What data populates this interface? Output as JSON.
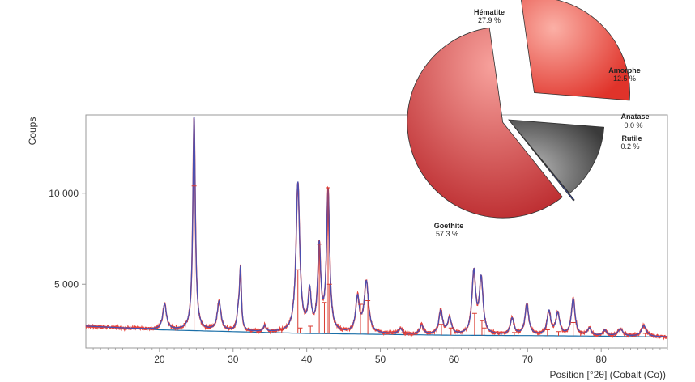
{
  "chart_data": [
    {
      "type": "line",
      "title": "",
      "ylabel": "Coups",
      "xlabel": "Position [°2θ] (Cobalt (Co))",
      "xlim": [
        10,
        89
      ],
      "ylim": [
        1500,
        14300
      ],
      "x_ticks": [
        20,
        30,
        40,
        50,
        60,
        70,
        80
      ],
      "x_tick_labels": [
        "20",
        "30",
        "40",
        "50",
        "60",
        "70",
        "80"
      ],
      "y_ticks": [
        5000,
        10000
      ],
      "y_tick_labels": [
        "5 000",
        "10 000"
      ],
      "grid": false,
      "background": {
        "x": [
          10,
          20,
          30,
          40,
          50,
          60,
          70,
          80,
          89
        ],
        "y": [
          2700,
          2500,
          2400,
          2300,
          2250,
          2200,
          2180,
          2150,
          2100
        ]
      },
      "peaks": [
        {
          "x": 20.7,
          "height": 1400,
          "width": 0.3
        },
        {
          "x": 24.7,
          "height": 11800,
          "width": 0.2
        },
        {
          "x": 28.1,
          "height": 1600,
          "width": 0.3
        },
        {
          "x": 30.7,
          "height": 900,
          "width": 0.2
        },
        {
          "x": 31.0,
          "height": 3300,
          "width": 0.15
        },
        {
          "x": 34.3,
          "height": 350,
          "width": 0.2
        },
        {
          "x": 38.8,
          "height": 8200,
          "width": 0.3
        },
        {
          "x": 40.4,
          "height": 2100,
          "width": 0.25
        },
        {
          "x": 41.7,
          "height": 4600,
          "width": 0.25
        },
        {
          "x": 42.9,
          "height": 7700,
          "width": 0.25
        },
        {
          "x": 46.9,
          "height": 1900,
          "width": 0.3
        },
        {
          "x": 48.1,
          "height": 2800,
          "width": 0.35
        },
        {
          "x": 52.7,
          "height": 300,
          "width": 0.3
        },
        {
          "x": 55.6,
          "height": 500,
          "width": 0.3
        },
        {
          "x": 58.2,
          "height": 1300,
          "width": 0.3
        },
        {
          "x": 59.4,
          "height": 900,
          "width": 0.3
        },
        {
          "x": 62.7,
          "height": 3400,
          "width": 0.3
        },
        {
          "x": 63.7,
          "height": 3000,
          "width": 0.3
        },
        {
          "x": 67.9,
          "height": 900,
          "width": 0.3
        },
        {
          "x": 69.9,
          "height": 1700,
          "width": 0.3
        },
        {
          "x": 72.9,
          "height": 1300,
          "width": 0.3
        },
        {
          "x": 74.1,
          "height": 1200,
          "width": 0.3
        },
        {
          "x": 76.2,
          "height": 2000,
          "width": 0.3
        },
        {
          "x": 78.4,
          "height": 400,
          "width": 0.3
        },
        {
          "x": 80.5,
          "height": 300,
          "width": 0.3
        },
        {
          "x": 82.6,
          "height": 400,
          "width": 0.4
        },
        {
          "x": 85.8,
          "height": 600,
          "width": 0.4
        }
      ],
      "reference_lines": [
        {
          "x": 24.7,
          "y": 10400
        },
        {
          "x": 38.8,
          "y": 5800
        },
        {
          "x": 39.1,
          "y": 2600
        },
        {
          "x": 41.7,
          "y": 7200
        },
        {
          "x": 42.9,
          "y": 10300
        },
        {
          "x": 43.1,
          "y": 5000
        },
        {
          "x": 42.4,
          "y": 4000
        },
        {
          "x": 40.5,
          "y": 2700
        },
        {
          "x": 47.3,
          "y": 3900
        },
        {
          "x": 48.3,
          "y": 4100
        },
        {
          "x": 36.6,
          "y": 2500
        },
        {
          "x": 53.2,
          "y": 2350
        },
        {
          "x": 58.3,
          "y": 2800
        },
        {
          "x": 59.6,
          "y": 2600
        },
        {
          "x": 62.8,
          "y": 3400
        },
        {
          "x": 63.8,
          "y": 3000
        },
        {
          "x": 64.1,
          "y": 2600
        },
        {
          "x": 68.2,
          "y": 2350
        },
        {
          "x": 72.7,
          "y": 2500
        },
        {
          "x": 74.2,
          "y": 2400
        },
        {
          "x": 76.2,
          "y": 2900
        },
        {
          "x": 77.2,
          "y": 2400
        },
        {
          "x": 86.0,
          "y": 2300
        }
      ],
      "colors": {
        "observed": "#e8433a",
        "calculated": "#4b4fb0",
        "background": "#1a6fa8",
        "residual_marks": "#d93a30",
        "axis": "#999999"
      }
    },
    {
      "type": "pie",
      "title": "",
      "slices": [
        {
          "label": "Hématite",
          "value_text": "27.9 %",
          "value": 27.9,
          "color": "#f05a4a",
          "exploded": true
        },
        {
          "label": "Amorphe",
          "value_text": "12.5 %",
          "value": 12.5,
          "color": "#555555",
          "exploded": false
        },
        {
          "label": "Anatase",
          "value_text": "0.0 %",
          "value": 0.05,
          "color": "#c47a2c",
          "exploded": false
        },
        {
          "label": "Rutile",
          "value_text": "0.2 %",
          "value": 0.2,
          "color": "#3246a8",
          "exploded": true
        },
        {
          "label": "Goethite",
          "value_text": "57.3 %",
          "value": 57.3,
          "color": "#d6393a",
          "exploded": true
        }
      ]
    }
  ]
}
